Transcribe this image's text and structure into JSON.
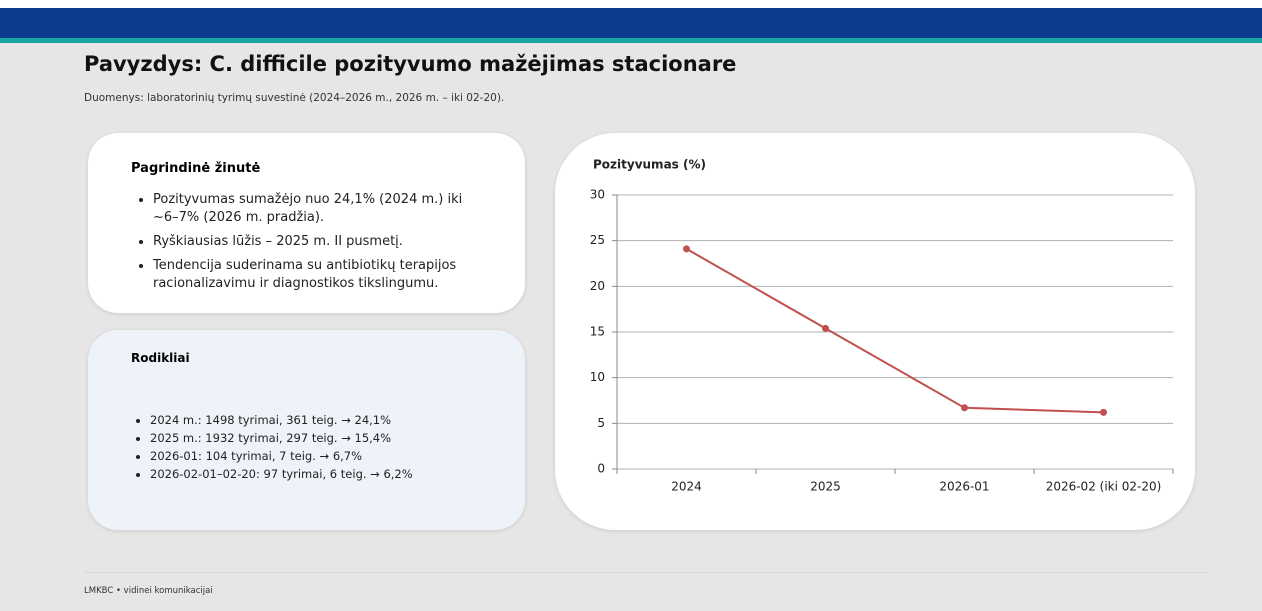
{
  "header": {
    "title": "Pavyzdys: C. difficile pozityvumo mažėjimas stacionare",
    "subtitle": "Duomenys: laboratorinių tyrimų suvestinė (2024–2026 m., 2026 m. – iki 02-20)."
  },
  "key_message": {
    "title": "Pagrindinė žinutė",
    "bullets": [
      "Pozityvumas sumažėjo nuo 24,1% (2024 m.) iki ~6–7% (2026 m. pradžia).",
      "Ryškiausias lūžis – 2025 m. II pusmetį.",
      "Tendencija suderinama su antibiotikų terapijos racionalizavimu ir  diagnostikos tikslingumu."
    ]
  },
  "indicators": {
    "title": "Rodikliai",
    "bullets": [
      "2024 m.: 1498 tyrimai, 361 teig. → 24,1%",
      "2025 m.: 1932 tyrimai, 297 teig. → 15,4%",
      "2026-01: 104 tyrimai, 7 teig. → 6,7%",
      "2026-02-01–02-20: 97 tyrimai, 6 teig. → 6,2%"
    ]
  },
  "chart_data": {
    "type": "line",
    "title": "Pozityvumas (%)",
    "categories": [
      "2024",
      "2025",
      "2026-01",
      "2026-02 (iki 02-20)"
    ],
    "values": [
      24.1,
      15.4,
      6.7,
      6.2
    ],
    "color": "#c0504d",
    "ylim": [
      0,
      30
    ],
    "yticks": [
      0,
      5,
      10,
      15,
      20,
      25,
      30
    ],
    "grid": true
  },
  "footer": "LMKBC • vidinei komunikacijai"
}
